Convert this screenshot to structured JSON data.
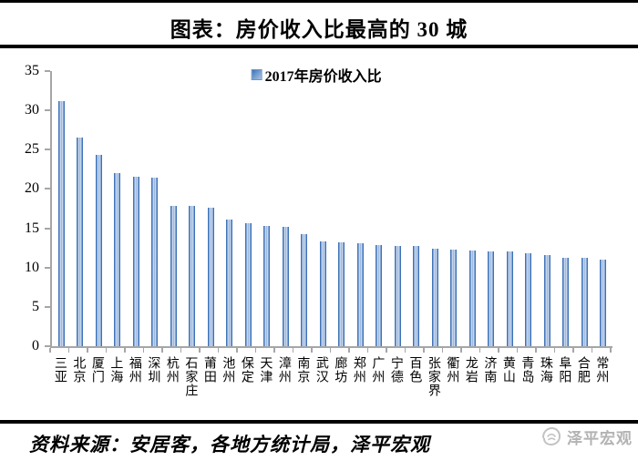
{
  "page": {
    "title": "图表：房价收入比最高的 30 城",
    "footer": {
      "source": "资料来源：安居客，各地方统计局，泽平宏观",
      "watermark": "泽平宏观"
    }
  },
  "chart_data": {
    "type": "bar",
    "title": "图表：房价收入比最高的 30 城",
    "legend": {
      "label": "2017年房价收入比",
      "position": "top-center"
    },
    "categories": [
      "三亚",
      "北京",
      "厦门",
      "上海",
      "福州",
      "深圳",
      "杭州",
      "石家庄",
      "莆田",
      "池州",
      "保定",
      "天津",
      "漳州",
      "南京",
      "武汉",
      "廊坊",
      "郑州",
      "广州",
      "宁德",
      "百色",
      "张家界",
      "衢州",
      "龙岩",
      "济南",
      "黄山",
      "青岛",
      "珠海",
      "阜阳",
      "合肥",
      "常州"
    ],
    "values": [
      31.2,
      26.5,
      24.3,
      22.0,
      21.6,
      21.5,
      17.9,
      17.8,
      17.6,
      16.1,
      15.6,
      15.3,
      15.2,
      14.3,
      13.3,
      13.2,
      13.1,
      12.9,
      12.7,
      12.7,
      12.4,
      12.3,
      12.2,
      12.1,
      12.0,
      11.8,
      11.6,
      11.3,
      11.2,
      11.0
    ],
    "xlabel": "",
    "ylabel": "",
    "ylim": [
      0,
      35
    ],
    "yticks": [
      0,
      5,
      10,
      15,
      20,
      25,
      30,
      35
    ],
    "grid": false,
    "bar_color": "#2f65aa",
    "axis_color": "#a6a6a6"
  }
}
